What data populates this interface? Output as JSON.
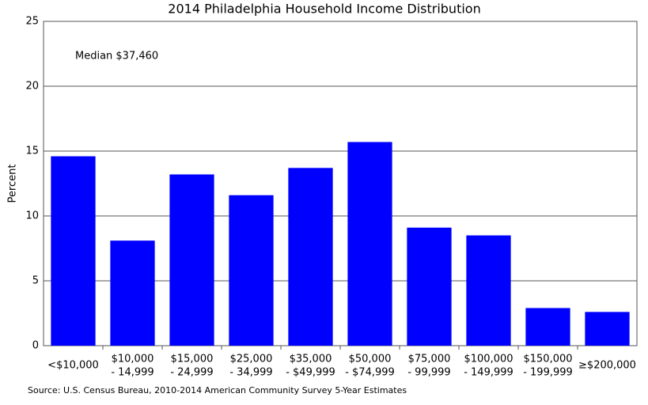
{
  "chart_data": {
    "type": "bar",
    "title": "2014 Philadelphia Household Income Distribution",
    "ylabel": "Percent",
    "annotation": "Median $37,460",
    "source": "Source: U.S. Census Bureau, 2010-2014 American Community Survey 5-Year Estimates",
    "categories": [
      [
        "<$10,000"
      ],
      [
        "$10,000",
        "- 14,999"
      ],
      [
        "$15,000",
        "- 24,999"
      ],
      [
        "$25,000",
        "- 34,999"
      ],
      [
        "$35,000",
        "- $49,999"
      ],
      [
        "$50,000",
        "- $74,999"
      ],
      [
        "$75,000",
        "- 99,999"
      ],
      [
        "$100,000",
        "- 149,999"
      ],
      [
        "$150,000",
        "- 199,999"
      ],
      [
        "≥$200,000"
      ]
    ],
    "values": [
      14.6,
      8.1,
      13.2,
      11.6,
      13.7,
      15.7,
      9.1,
      8.5,
      2.9,
      2.6
    ],
    "color": "#0000ff",
    "ylim": [
      0,
      25
    ],
    "yticks": [
      0,
      5,
      10,
      15,
      20,
      25
    ],
    "grid": true
  }
}
